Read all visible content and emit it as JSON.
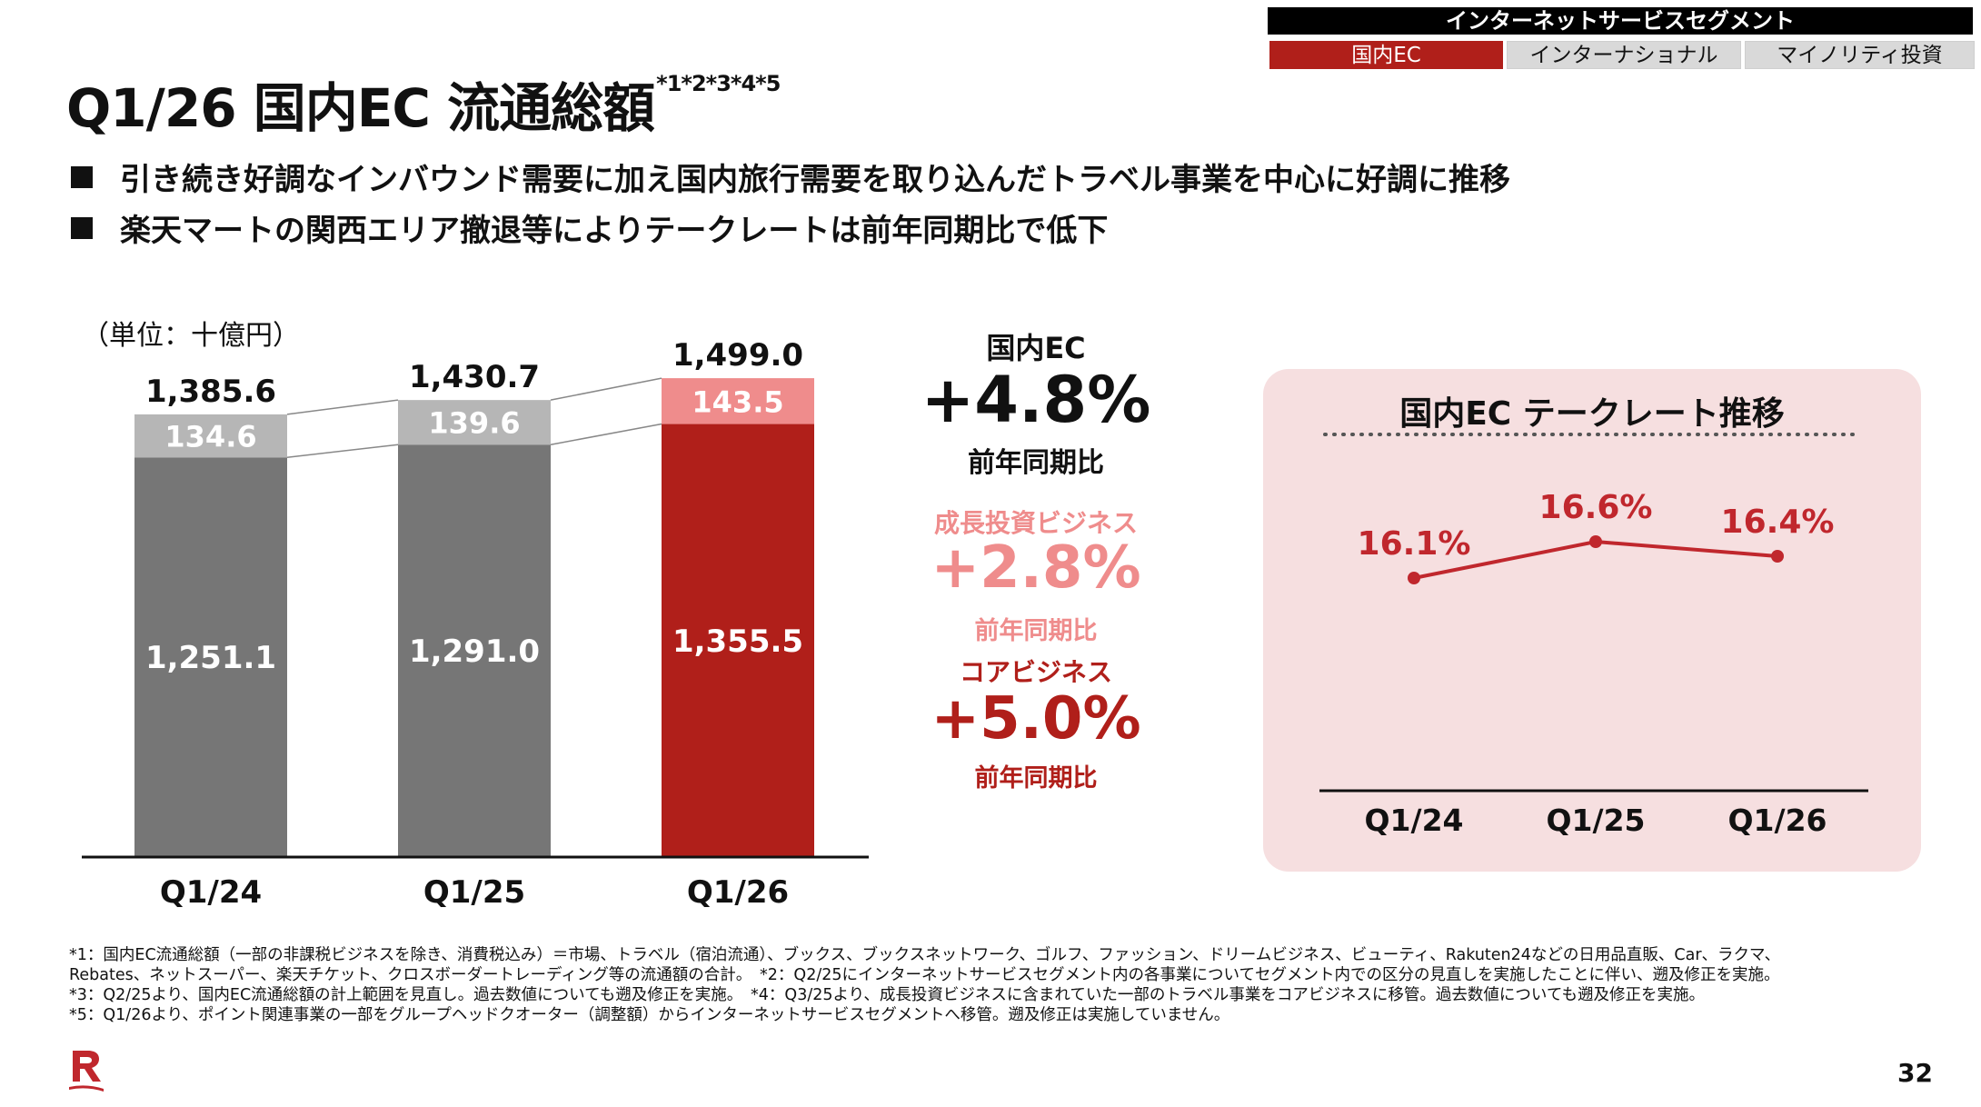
{
  "segment_nav": {
    "header": "インターネットサービスセグメント",
    "tabs": [
      "国内EC",
      "インターナショナル",
      "マイノリティ投資"
    ],
    "active_tab": "国内EC"
  },
  "title": {
    "main": "Q1/26 国内EC 流通総額",
    "superscript": "*1*2*3*4*5"
  },
  "bullets": [
    "引き続き好調なインバウンド需要に加え国内旅行需要を取り込んだトラベル事業を中心に好調に推移",
    "楽天マートの関西エリア撤退等によりテークレートは前年同期比で低下"
  ],
  "unit_label": "（単位：十億円）",
  "kpis": {
    "total": {
      "label": "国内EC",
      "value": "+4.8%",
      "sublabel": "前年同期比"
    },
    "growth": {
      "label": "成長投資ビジネス",
      "value": "+2.8%",
      "sublabel": "前年同期比"
    },
    "core": {
      "label": "コアビジネス",
      "value": "+5.0%",
      "sublabel": "前年同期比"
    }
  },
  "colors": {
    "core_past": "#767676",
    "growth_past": "#b6b6b6",
    "core_current": "#b01f1a",
    "growth_current": "#ef8c8c",
    "kpi_pink": "#ef8c8c",
    "kpi_red": "#b01f1a",
    "line_red": "#c0272d",
    "panel_bg": "#f6dfe0"
  },
  "chart_data": [
    {
      "type": "bar",
      "stacked": true,
      "categories": [
        "Q1/24",
        "Q1/25",
        "Q1/26"
      ],
      "series": [
        {
          "values": [
            1251.1,
            1291.0,
            1355.5
          ]
        },
        {
          "values": [
            134.6,
            139.6,
            143.5
          ]
        }
      ],
      "totals": [
        1385.6,
        1430.7,
        1499.0
      ],
      "labels": {
        "series0": [
          "1,251.1",
          "1,291.0",
          "1,355.5"
        ],
        "series1": [
          "134.6",
          "139.6",
          "143.5"
        ],
        "totals": [
          "1,385.6",
          "1,430.7",
          "1,499.0"
        ]
      },
      "grid": false
    },
    {
      "type": "line",
      "title": "国内EC テークレート推移",
      "categories": [
        "Q1/24",
        "Q1/25",
        "Q1/26"
      ],
      "values": [
        16.1,
        16.6,
        16.4
      ],
      "labels": [
        "16.1%",
        "16.6%",
        "16.4%"
      ],
      "grid": false
    }
  ],
  "footnotes": [
    "*1：国内EC流通総額（一部の非課税ビジネスを除き、消費税込み）＝市場、トラベル（宿泊流通）、ブックス、ブックスネットワーク、ゴルフ、ファッション、ドリームビジネス、ビューティ、Rakuten24などの日用品直販、Car、ラクマ、",
    "Rebates、ネットスーパー、楽天チケット、クロスボーダートレーディング等の流通額の合計。　*2：Q2/25にインターネットサービスセグメント内の各事業についてセグメント内での区分の見直しを実施したことに伴い、遡及修正を実施。",
    "*3：Q2/25より、国内EC流通総額の計上範囲を見直し。過去数値についても遡及修正を実施。　*4：Q3/25より、成長投資ビジネスに含まれていた一部のトラベル事業をコアビジネスに移管。過去数値についても遡及修正を実施。",
    "*5：Q1/26より、ポイント関連事業の一部をグループヘッドクオーター（調整額）からインターネットサービスセグメントへ移管。遡及修正は実施していません。"
  ],
  "logo_icon": "rakuten-r-logo",
  "page_number": "32"
}
